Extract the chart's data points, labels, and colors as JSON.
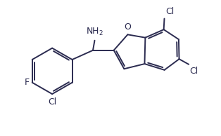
{
  "background": "#ffffff",
  "line_color": "#2b2b50",
  "text_color": "#2b2b50",
  "bond_lw": 1.4,
  "figsize": [
    3.14,
    1.94
  ],
  "dpi": 100,
  "xlim": [
    0,
    10
  ],
  "ylim": [
    0,
    6.18
  ]
}
